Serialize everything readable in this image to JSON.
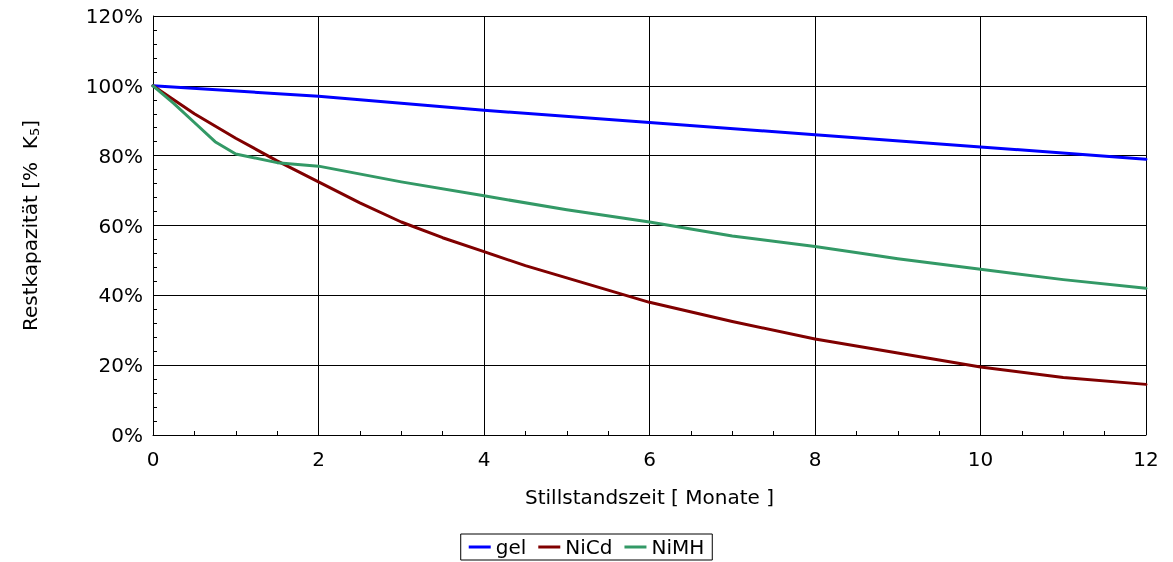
{
  "chart_data": {
    "type": "line",
    "xlabel": "Stillstandszeit [ Monate ]",
    "ylabel": "Restkapazität [%  K$_{5}$]",
    "xlim": [
      0,
      12
    ],
    "xticks": [
      0,
      2,
      4,
      6,
      8,
      10,
      12
    ],
    "ylim": [
      0,
      120
    ],
    "yticks": [
      {
        "value": 0,
        "label": "0%"
      },
      {
        "value": 20,
        "label": "20%"
      },
      {
        "value": 40,
        "label": "40%"
      },
      {
        "value": 60,
        "label": "60%"
      },
      {
        "value": 80,
        "label": "80%"
      },
      {
        "value": 100,
        "label": "100%"
      },
      {
        "value": 120,
        "label": "120%"
      }
    ],
    "grid": true,
    "legend": "bottom",
    "marker": "none",
    "line_style": "solid",
    "series": [
      {
        "name": "gel",
        "color": "#0000ff",
        "x": [
          0,
          2,
          4,
          6,
          8,
          10,
          12
        ],
        "values": [
          100,
          97,
          93,
          89.5,
          86,
          82.5,
          79
        ]
      },
      {
        "name": "NiCd",
        "color": "#800000",
        "x": [
          0,
          0.5,
          1,
          1.5,
          2,
          2.5,
          3,
          3.5,
          4,
          4.5,
          5,
          5.5,
          6,
          7,
          8,
          9,
          10,
          11,
          12
        ],
        "values": [
          100,
          92,
          85,
          78.5,
          72.5,
          66.5,
          61,
          56.5,
          52.5,
          48.5,
          45,
          41.5,
          38,
          32.5,
          27.5,
          23.5,
          19.5,
          16.5,
          14.5
        ]
      },
      {
        "name": "NiMH",
        "color": "#339966",
        "x": [
          0,
          0.25,
          0.5,
          0.75,
          1,
          1.5,
          2,
          3,
          4,
          5,
          6,
          7,
          8,
          9,
          10,
          11,
          12
        ],
        "values": [
          100,
          95,
          89.5,
          84,
          80.5,
          78,
          77,
          72.5,
          68.5,
          64.5,
          61,
          57,
          54,
          50.5,
          47.5,
          44.5,
          42
        ]
      }
    ]
  }
}
